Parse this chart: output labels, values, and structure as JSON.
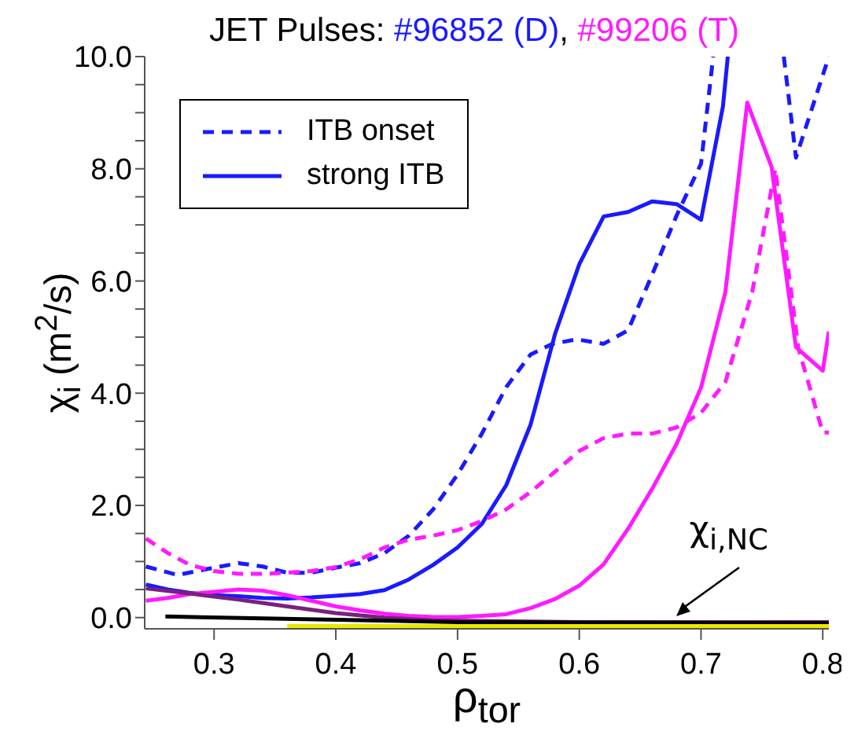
{
  "chart_data": {
    "type": "line",
    "title": "JET Pulses: #96852 (D), #99206 (T)",
    "xlabel": "ρ$_{tor}$",
    "ylabel": "χ$_{i}$ (m$^{2}$/s)",
    "xlim": [
      0.243,
      0.805
    ],
    "xticks": [
      0.3,
      0.4,
      0.5,
      0.6,
      0.7,
      0.8
    ],
    "ylim": [
      -0.2,
      10
    ],
    "yticks": [
      {
        "value": 0,
        "label": "0.0"
      },
      {
        "value": 0.5,
        "label": null
      },
      {
        "value": 1,
        "label": null
      },
      {
        "value": 1.5,
        "label": null
      },
      {
        "value": 2,
        "label": "2.0"
      },
      {
        "value": 2.5,
        "label": null
      },
      {
        "value": 3,
        "label": null
      },
      {
        "value": 3.5,
        "label": null
      },
      {
        "value": 4,
        "label": "4.0"
      },
      {
        "value": 4.5,
        "label": null
      },
      {
        "value": 5,
        "label": null
      },
      {
        "value": 5.5,
        "label": null
      },
      {
        "value": 6,
        "label": "6.0"
      },
      {
        "value": 6.5,
        "label": null
      },
      {
        "value": 7,
        "label": null
      },
      {
        "value": 7.5,
        "label": null
      },
      {
        "value": 8,
        "label": "8.0"
      },
      {
        "value": 8.5,
        "label": null
      },
      {
        "value": 9,
        "label": null
      },
      {
        "value": 9.5,
        "label": null
      },
      {
        "value": 10,
        "label": "10.0"
      }
    ],
    "grid": false,
    "legend": "top left",
    "marker": "none",
    "annotations": [
      {
        "text": "χ$_{i,NC}$",
        "x": 0.68,
        "y": -0.05
      }
    ],
    "series": [
      {
        "name": "ITB onset",
        "color": "#1a1aff",
        "line_style": "dashed",
        "x": [
          0.244,
          0.27,
          0.3,
          0.32,
          0.34,
          0.36,
          0.38,
          0.4,
          0.42,
          0.44,
          0.46,
          0.48,
          0.5,
          0.52,
          0.54,
          0.56,
          0.578,
          0.598,
          0.62,
          0.64,
          0.66,
          0.68,
          0.7,
          0.71,
          0.715,
          0.768,
          0.778,
          0.805
        ],
        "values": [
          0.91,
          0.76,
          0.89,
          0.97,
          0.91,
          0.8,
          0.8,
          0.89,
          0.97,
          1.15,
          1.46,
          1.93,
          2.55,
          3.28,
          4.11,
          4.69,
          4.88,
          4.96,
          4.88,
          5.12,
          6.12,
          7.17,
          8.09,
          10,
          null,
          10,
          8.2,
          10
        ]
      },
      {
        "name": "strong ITB",
        "color": "#1a1aff",
        "line_style": "solid",
        "x": [
          0.244,
          0.262,
          0.28,
          0.3,
          0.32,
          0.34,
          0.36,
          0.38,
          0.4,
          0.42,
          0.44,
          0.46,
          0.48,
          0.5,
          0.52,
          0.54,
          0.56,
          0.58,
          0.6,
          0.62,
          0.64,
          0.66,
          0.68,
          0.7,
          0.718,
          0.722
        ],
        "values": [
          0.59,
          0.5,
          0.44,
          0.4,
          0.38,
          0.35,
          0.34,
          0.36,
          0.39,
          0.42,
          0.49,
          0.68,
          0.94,
          1.25,
          1.67,
          2.36,
          3.44,
          5.05,
          6.3,
          7.15,
          7.23,
          7.42,
          7.37,
          7.09,
          9.11,
          10
        ]
      },
      {
        "color": "#ff1aff",
        "line_style": "dashed",
        "x": [
          0.244,
          0.262,
          0.28,
          0.3,
          0.32,
          0.34,
          0.36,
          0.38,
          0.4,
          0.42,
          0.44,
          0.46,
          0.48,
          0.5,
          0.52,
          0.54,
          0.56,
          0.58,
          0.6,
          0.62,
          0.64,
          0.66,
          0.68,
          0.7,
          0.72,
          0.742,
          0.761,
          0.78,
          0.8,
          0.805
        ],
        "values": [
          1.41,
          1.15,
          0.94,
          0.83,
          0.78,
          0.78,
          0.8,
          0.83,
          0.9,
          1.04,
          1.25,
          1.39,
          1.46,
          1.56,
          1.72,
          1.93,
          2.24,
          2.6,
          2.97,
          3.2,
          3.28,
          3.28,
          3.39,
          3.65,
          4.2,
          5.8,
          8.0,
          4.8,
          3.3,
          3.3
        ]
      },
      {
        "color": "#ff1aff",
        "line_style": "solid",
        "x": [
          0.244,
          0.262,
          0.28,
          0.3,
          0.32,
          0.34,
          0.36,
          0.38,
          0.4,
          0.42,
          0.44,
          0.46,
          0.48,
          0.5,
          0.52,
          0.54,
          0.56,
          0.58,
          0.6,
          0.62,
          0.64,
          0.66,
          0.68,
          0.7,
          0.72,
          0.738,
          0.758,
          0.778,
          0.8,
          0.805
        ],
        "values": [
          0.3,
          0.35,
          0.42,
          0.46,
          0.5,
          0.48,
          0.4,
          0.3,
          0.2,
          0.13,
          0.07,
          0.03,
          0.01,
          0.01,
          0.03,
          0.06,
          0.17,
          0.33,
          0.57,
          0.95,
          1.58,
          2.3,
          3.1,
          4.1,
          5.8,
          9.18,
          8.03,
          4.82,
          4.4,
          5.1
        ]
      },
      {
        "color": "#7a2080",
        "line_style": "solid",
        "x": [
          0.244,
          0.28,
          0.32,
          0.36,
          0.4,
          0.44,
          0.48,
          0.6,
          0.805
        ],
        "values": [
          0.52,
          0.43,
          0.32,
          0.2,
          0.08,
          0.0,
          -0.05,
          -0.08,
          -0.08
        ]
      },
      {
        "color": "#000000",
        "line_style": "solid",
        "x": [
          0.26,
          0.5,
          0.805
        ],
        "values": [
          0.02,
          -0.08,
          -0.1
        ]
      },
      {
        "color": "#e8e800",
        "line_style": "solid",
        "x": [
          0.36,
          0.805
        ],
        "values": [
          -0.15,
          -0.15
        ]
      }
    ]
  }
}
